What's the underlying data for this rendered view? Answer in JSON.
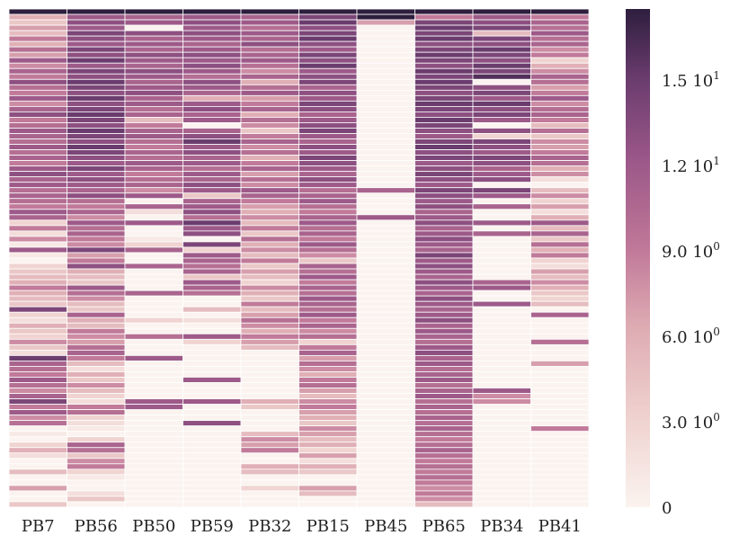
{
  "chart_data": {
    "type": "heatmap",
    "title": "",
    "xlabel": "",
    "ylabel": "",
    "columns": [
      "PB7",
      "PB56",
      "PB50",
      "PB59",
      "PB32",
      "PB15",
      "PB45",
      "PB65",
      "PB34",
      "PB41"
    ],
    "n_rows": 92,
    "value_range": [
      0,
      17.5
    ],
    "colorbar": {
      "ticks": [
        0,
        3.0,
        6.0,
        9.0,
        12.0,
        15.0
      ],
      "labels": [
        "0",
        "3.0 10",
        "6.0 10",
        "9.0 10",
        "1.2 10",
        "1.5 10"
      ],
      "exponents": [
        "",
        "0",
        "0",
        "0",
        "1",
        "1"
      ]
    },
    "colors": {
      "low": "#fbf3ef",
      "mid": "#c07898",
      "high": "#2e1e3e",
      "grid": "#ffffff"
    },
    "column_profiles": [
      {
        "name": "PB7",
        "levels": [
          17.5,
          6,
          4,
          7,
          5,
          9,
          6,
          10,
          7,
          12,
          8,
          11,
          9,
          13,
          10,
          9,
          12,
          8,
          11,
          13,
          9,
          10,
          12,
          11,
          10,
          12,
          10,
          11,
          9,
          12,
          13,
          11,
          12,
          10,
          11,
          10,
          9,
          12,
          11,
          3,
          9,
          2,
          8,
          1,
          12,
          1,
          0,
          3,
          4,
          5,
          6,
          9,
          6,
          5,
          4,
          14,
          3,
          2,
          6,
          4,
          3,
          8,
          4,
          2,
          15,
          11,
          10,
          9,
          12,
          10,
          8,
          11,
          14,
          9,
          12,
          8,
          10,
          0,
          1,
          0,
          3,
          6,
          2,
          0,
          0,
          5,
          0,
          0,
          7,
          0,
          0,
          4
        ]
      },
      {
        "name": "PB56",
        "levels": [
          17.5,
          12,
          13,
          12,
          14,
          13,
          12,
          14,
          13,
          15,
          12,
          14,
          13,
          15,
          14,
          13,
          15,
          13,
          14,
          15,
          14,
          13,
          15,
          14,
          13,
          15,
          14,
          13,
          12,
          14,
          12,
          13,
          12,
          11,
          13,
          10,
          9,
          11,
          8,
          12,
          10,
          11,
          9,
          8,
          14,
          7,
          9,
          13,
          6,
          5,
          4,
          12,
          10,
          8,
          5,
          4,
          11,
          6,
          5,
          9,
          8,
          7,
          10,
          11,
          9,
          5,
          2,
          6,
          4,
          8,
          5,
          3,
          2,
          9,
          10,
          3,
          2,
          1,
          0,
          3,
          11,
          10,
          4,
          8,
          9,
          3,
          1,
          0,
          0,
          2,
          4,
          0
        ]
      },
      {
        "name": "PB50",
        "levels": [
          17.5,
          11,
          12,
          0,
          13,
          11,
          12,
          11,
          13,
          12,
          11,
          13,
          12,
          11,
          12,
          13,
          11,
          12,
          10,
          11,
          5,
          9,
          11,
          12,
          10,
          9,
          11,
          10,
          12,
          11,
          9,
          10,
          11,
          8,
          12,
          0,
          11,
          2,
          0,
          12,
          0,
          0,
          1,
          3,
          11,
          0,
          0,
          11,
          0,
          0,
          0,
          0,
          11,
          0,
          0,
          0,
          0,
          3,
          0,
          0,
          10,
          0,
          0,
          0,
          12,
          0,
          0,
          0,
          0,
          0,
          0,
          0,
          12,
          12,
          0,
          0,
          0,
          0,
          0,
          0,
          0,
          0,
          0,
          0,
          0,
          0,
          0,
          0,
          0,
          0,
          0,
          0
        ]
      },
      {
        "name": "PB59",
        "levels": [
          17.5,
          12,
          13,
          12,
          13,
          12,
          11,
          12,
          13,
          12,
          13,
          12,
          10,
          13,
          12,
          11,
          6,
          12,
          13,
          11,
          12,
          0,
          11,
          13,
          15,
          12,
          13,
          11,
          12,
          10,
          12,
          11,
          13,
          12,
          4,
          11,
          12,
          13,
          10,
          15,
          12,
          13,
          0,
          14,
          3,
          12,
          11,
          10,
          11,
          4,
          12,
          11,
          10,
          0,
          0,
          5,
          0,
          2,
          0,
          0,
          12,
          3,
          0,
          0,
          0,
          0,
          0,
          0,
          12,
          0,
          0,
          0,
          12,
          0,
          0,
          0,
          13,
          0,
          0,
          0,
          0,
          0,
          0,
          0,
          0,
          0,
          0,
          0,
          0,
          0,
          0,
          0
        ]
      },
      {
        "name": "PB32",
        "levels": [
          17.5,
          11,
          12,
          10,
          12,
          11,
          13,
          10,
          11,
          12,
          10,
          8,
          11,
          6,
          10,
          12,
          7,
          9,
          11,
          6,
          10,
          8,
          4,
          9,
          11,
          8,
          10,
          6,
          9,
          11,
          7,
          10,
          8,
          12,
          11,
          9,
          7,
          6,
          8,
          5,
          9,
          4,
          10,
          6,
          8,
          5,
          9,
          4,
          7,
          5,
          3,
          8,
          6,
          4,
          9,
          5,
          7,
          10,
          8,
          6,
          9,
          7,
          5,
          0,
          0,
          0,
          0,
          0,
          0,
          0,
          0,
          0,
          6,
          4,
          0,
          0,
          0,
          0,
          5,
          8,
          7,
          9,
          0,
          0,
          6,
          5,
          0,
          0,
          3,
          0,
          0,
          0
        ]
      },
      {
        "name": "PB15",
        "levels": [
          17.5,
          14,
          15,
          13,
          14,
          15,
          13,
          12,
          14,
          13,
          15,
          12,
          13,
          14,
          11,
          13,
          12,
          14,
          13,
          11,
          12,
          13,
          14,
          12,
          11,
          13,
          12,
          14,
          13,
          12,
          11,
          13,
          12,
          10,
          11,
          12,
          10,
          9,
          11,
          12,
          10,
          11,
          9,
          12,
          10,
          8,
          4,
          11,
          10,
          12,
          9,
          11,
          10,
          12,
          11,
          10,
          12,
          9,
          11,
          8,
          10,
          3,
          9,
          11,
          7,
          10,
          8,
          6,
          9,
          10,
          7,
          5,
          8,
          9,
          7,
          6,
          4,
          8,
          7,
          5,
          6,
          3,
          7,
          2,
          6,
          4,
          0,
          0,
          7,
          5,
          0,
          0
        ]
      },
      {
        "name": "PB45",
        "levels": [
          17.5,
          17.5,
          7,
          0,
          0,
          0,
          0,
          0,
          0,
          0,
          0,
          0,
          0,
          0,
          0,
          0,
          0,
          0,
          0,
          0,
          0,
          0,
          0,
          0,
          0,
          0,
          0,
          0,
          0,
          0,
          0,
          0,
          0,
          11,
          0,
          0,
          0,
          0,
          12,
          0,
          0,
          0,
          0,
          0,
          0,
          0,
          0,
          0,
          0,
          0,
          0,
          0,
          0,
          0,
          0,
          0,
          0,
          0,
          0,
          0,
          0,
          0,
          0,
          0,
          0,
          0,
          0,
          0,
          0,
          0,
          0,
          0,
          0,
          0,
          0,
          0,
          0,
          0,
          0,
          0,
          0,
          0,
          0,
          0,
          0,
          0,
          0,
          0,
          0,
          0,
          0,
          0
        ]
      },
      {
        "name": "PB65",
        "levels": [
          17.5,
          9,
          14,
          15,
          14,
          15,
          13,
          14,
          15,
          14,
          13,
          15,
          14,
          15,
          14,
          13,
          14,
          15,
          14,
          13,
          15,
          14,
          13,
          12,
          14,
          15,
          13,
          14,
          12,
          13,
          14,
          13,
          12,
          14,
          13,
          12,
          13,
          11,
          12,
          13,
          11,
          12,
          13,
          12,
          11,
          14,
          12,
          13,
          12,
          11,
          13,
          12,
          11,
          13,
          12,
          11,
          12,
          13,
          11,
          12,
          11,
          10,
          12,
          13,
          11,
          12,
          10,
          11,
          12,
          10,
          11,
          12,
          10,
          11,
          10,
          11,
          10,
          11,
          10,
          9,
          10,
          11,
          10,
          9,
          10,
          9,
          10,
          9,
          8,
          9,
          8,
          5
        ]
      },
      {
        "name": "PB34",
        "levels": [
          17.5,
          12,
          13,
          14,
          5,
          14,
          13,
          15,
          14,
          13,
          15,
          14,
          16,
          0,
          13,
          14,
          12,
          15,
          13,
          14,
          12,
          0,
          13,
          3,
          14,
          13,
          12,
          14,
          13,
          11,
          12,
          13,
          0,
          14,
          12,
          0,
          11,
          0,
          0,
          12,
          0,
          11,
          0,
          0,
          0,
          0,
          0,
          0,
          0,
          0,
          11,
          12,
          0,
          0,
          12,
          0,
          0,
          0,
          0,
          0,
          0,
          0,
          0,
          0,
          0,
          0,
          0,
          0,
          0,
          0,
          12,
          8,
          8,
          0,
          0,
          0,
          0,
          0,
          0,
          0,
          0,
          0,
          0,
          0,
          0,
          0,
          0,
          0,
          0,
          0,
          0,
          0
        ]
      },
      {
        "name": "PB41",
        "levels": [
          17.5,
          9,
          11,
          10,
          12,
          10,
          11,
          8,
          9,
          3,
          6,
          8,
          11,
          10,
          7,
          9,
          12,
          8,
          10,
          11,
          9,
          5,
          10,
          4,
          8,
          7,
          9,
          11,
          10,
          6,
          8,
          2,
          0,
          5,
          8,
          3,
          7,
          2,
          6,
          12,
          5,
          11,
          4,
          10,
          6,
          9,
          3,
          2,
          7,
          5,
          8,
          6,
          4,
          3,
          5,
          0,
          11,
          0,
          0,
          0,
          0,
          10,
          0,
          0,
          0,
          7,
          0,
          0,
          0,
          0,
          0,
          0,
          0,
          0,
          0,
          0,
          0,
          9,
          0,
          0,
          0,
          0,
          0,
          0,
          0,
          0,
          0,
          0,
          0,
          0,
          0,
          0
        ]
      }
    ]
  }
}
